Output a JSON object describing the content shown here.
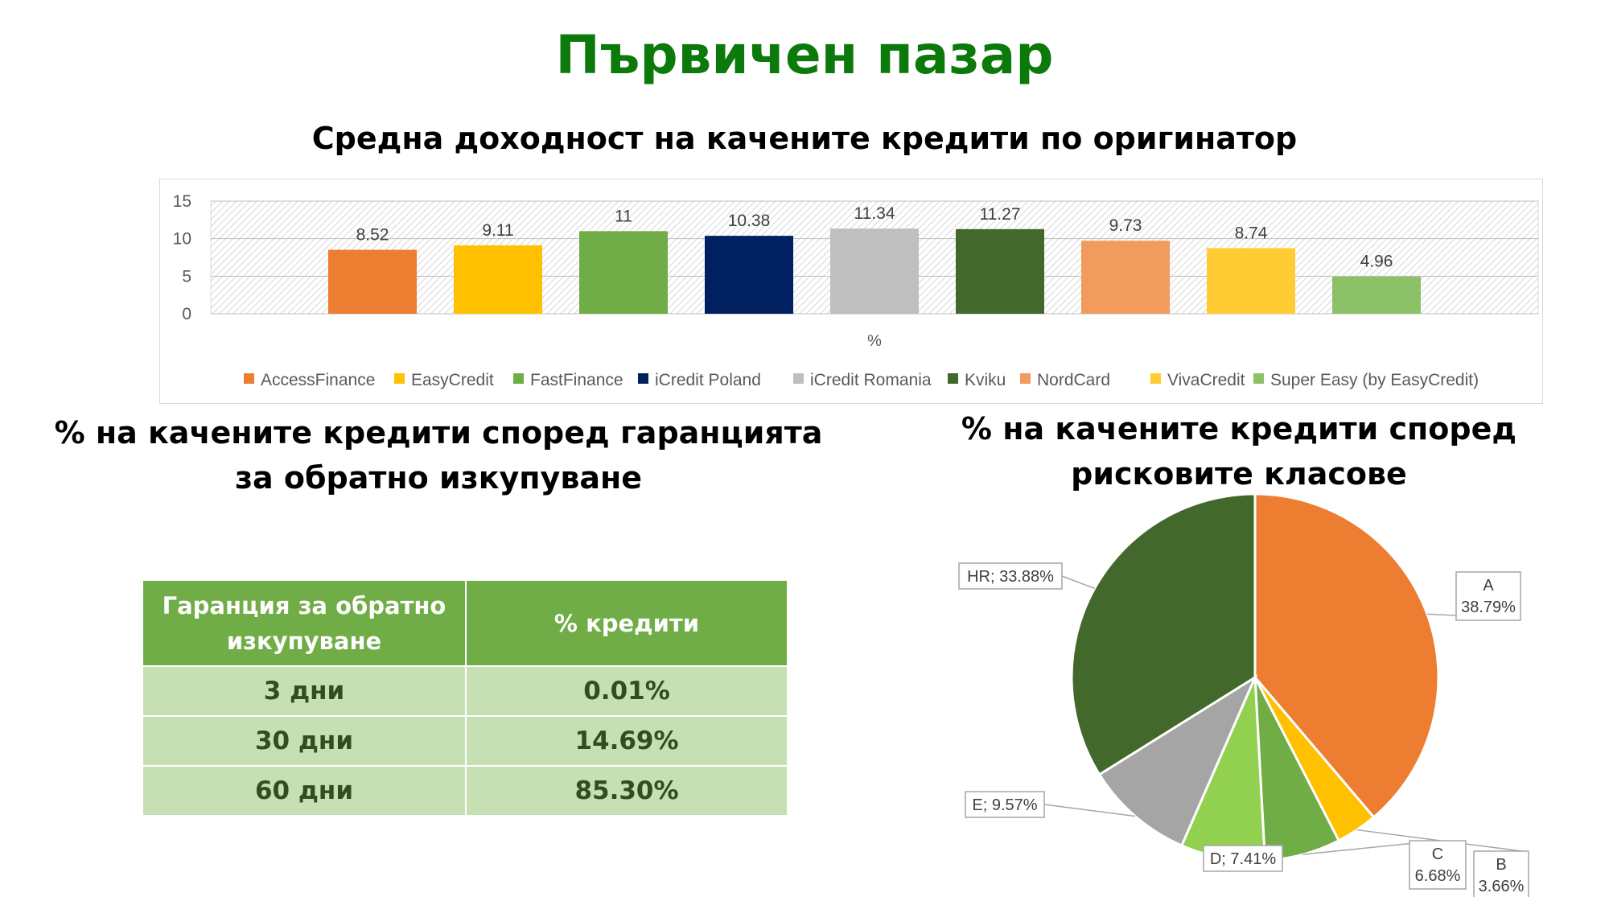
{
  "title": "Първичен пазар",
  "chart_data": [
    {
      "type": "bar",
      "title": "Средна доходност на качените кредити по оригинатор",
      "xlabel": "%",
      "ylim": [
        0,
        15
      ],
      "yticks": [
        0,
        5,
        10,
        15
      ],
      "grid": true,
      "legend_position": "bottom",
      "series": [
        {
          "name": "AccessFinance",
          "values": [
            8.52
          ],
          "color": "#ed7d31"
        },
        {
          "name": "EasyCredit",
          "values": [
            9.11
          ],
          "color": "#ffc000"
        },
        {
          "name": "FastFinance",
          "values": [
            11
          ],
          "color": "#70ad47"
        },
        {
          "name": "iCredit Poland",
          "values": [
            10.38
          ],
          "color": "#002060"
        },
        {
          "name": "iCredit Romania",
          "values": [
            11.34
          ],
          "color": "#bfbfbf"
        },
        {
          "name": "Kviku",
          "values": [
            11.27
          ],
          "color": "#43682b"
        },
        {
          "name": "NordCard",
          "values": [
            9.73
          ],
          "color": "#f19b5e"
        },
        {
          "name": "VivaCredit",
          "values": [
            8.74
          ],
          "color": "#ffcd33"
        },
        {
          "name": "Super Easy (by EasyCredit)",
          "values": [
            4.96
          ],
          "color": "#8cc168"
        }
      ]
    },
    {
      "type": "table",
      "title": "% на качените кредити според гаранцията за обратно изкупуване",
      "columns": [
        "Гаранция за обратно изкупуване",
        "% кредити"
      ],
      "rows": [
        [
          "3 дни",
          "0.01%"
        ],
        [
          "30 дни",
          "14.69%"
        ],
        [
          "60 дни",
          "85.30%"
        ]
      ]
    },
    {
      "type": "pie",
      "title": "% на качените кредити според рисковите класове",
      "slices": [
        {
          "label": "A",
          "value": 38.79,
          "text": "38.79%",
          "color": "#ed7d31"
        },
        {
          "label": "B",
          "value": 3.66,
          "text": "3.66%",
          "color": "#ffc000"
        },
        {
          "label": "C",
          "value": 6.68,
          "text": "6.68%",
          "color": "#70ad47"
        },
        {
          "label": "D",
          "value": 7.41,
          "text": "D; 7.41%",
          "color": "#92d050"
        },
        {
          "label": "E",
          "value": 9.57,
          "text": "E; 9.57%",
          "color": "#a5a5a5"
        },
        {
          "label": "HR",
          "value": 33.88,
          "text": "HR; 33.88%",
          "color": "#43682b"
        }
      ]
    }
  ]
}
